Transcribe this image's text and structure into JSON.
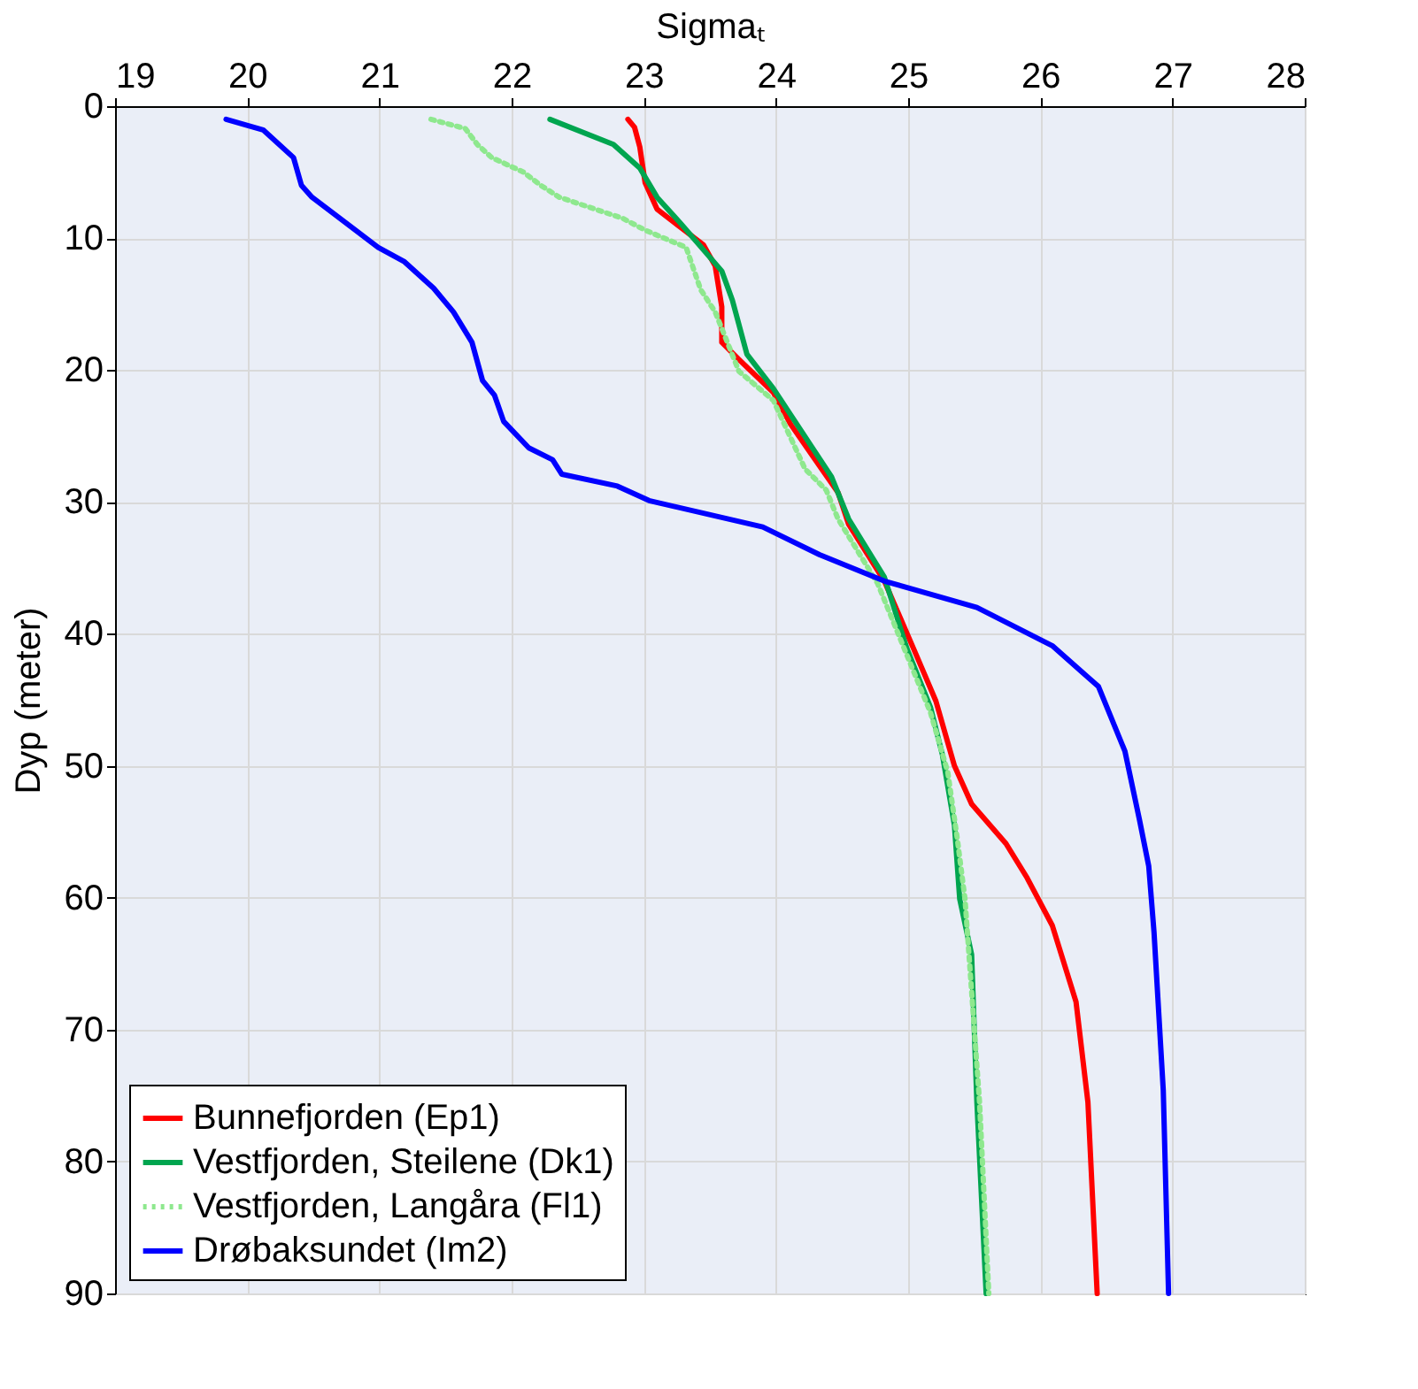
{
  "chart_data": {
    "type": "line",
    "xlabel": "Sigmaₜ",
    "ylabel": "Dyp (meter)",
    "xlim": [
      19,
      28
    ],
    "xticks": [
      19,
      20,
      21,
      22,
      23,
      24,
      25,
      26,
      27,
      28
    ],
    "ylim": [
      90,
      0
    ],
    "yticks": [
      0,
      10,
      20,
      30,
      40,
      50,
      60,
      70,
      80,
      90
    ],
    "grid": true,
    "legend": "bottom left",
    "marker": "none",
    "series": [
      {
        "name": "Bunnefjorden (Ep1)",
        "color": "#ff0000",
        "line_style": "solid",
        "x": [
          22.88,
          22.93,
          22.97,
          23.01,
          23.1,
          23.28,
          23.45,
          23.54,
          23.59,
          23.59,
          23.72,
          23.98,
          24.11,
          24.47,
          24.55,
          24.82,
          25.04,
          25.21,
          25.35,
          25.48,
          25.74,
          25.9,
          26.09,
          26.27,
          26.36,
          26.43
        ],
        "values": [
          1,
          1.6,
          3.1,
          5.8,
          7.8,
          9.2,
          10.5,
          12.1,
          15.2,
          17.9,
          19.2,
          21.7,
          24.1,
          29.3,
          31.7,
          36,
          41.1,
          45.1,
          50,
          52.9,
          55.9,
          58.5,
          62.1,
          67.9,
          75.5,
          90
        ]
      },
      {
        "name": "Vestfjorden, Steilene (Dk1)",
        "color": "#00a54f",
        "line_style": "solid",
        "x": [
          22.29,
          22.77,
          22.97,
          23.1,
          23.28,
          23.59,
          23.67,
          23.78,
          23.98,
          24.42,
          24.55,
          24.82,
          24.99,
          25.17,
          25.26,
          25.35,
          25.39,
          25.48,
          25.52,
          25.59
        ],
        "values": [
          1,
          2.9,
          4.7,
          6.9,
          8.9,
          12.5,
          14.7,
          18.8,
          21.4,
          28.1,
          31.3,
          35.7,
          41.1,
          45.6,
          49.2,
          54.5,
          60.1,
          64.3,
          75.5,
          90
        ]
      },
      {
        "name": "Vestfjorden, Langåra (Fl1)",
        "color": "#8ee88e",
        "line_style": "dotted",
        "x": [
          21.39,
          21.65,
          21.74,
          21.85,
          22.09,
          22.22,
          22.36,
          22.84,
          23.01,
          23.32,
          23.43,
          23.54,
          23.72,
          23.98,
          24.22,
          24.38,
          24.47,
          24.77,
          24.99,
          25.17,
          25.3,
          25.37,
          25.43,
          25.54,
          25.61
        ],
        "values": [
          1,
          1.7,
          2.9,
          3.9,
          5,
          6,
          6.9,
          8.5,
          9.4,
          10.7,
          13.9,
          15.6,
          20.1,
          22.3,
          27.5,
          29.1,
          31.3,
          36.2,
          41.6,
          46,
          50.5,
          55.4,
          60.1,
          75.5,
          90
        ]
      },
      {
        "name": "Drøbaksundet (Im2)",
        "color": "#0000ff",
        "line_style": "solid",
        "x": [
          19.84,
          20.12,
          20.35,
          20.41,
          20.49,
          20.99,
          21.19,
          21.41,
          21.56,
          21.7,
          21.78,
          21.87,
          21.94,
          22.13,
          22.31,
          22.38,
          22.8,
          23.04,
          23.9,
          24.33,
          24.82,
          25.52,
          26.09,
          26.44,
          26.64,
          26.75,
          26.82,
          26.86,
          26.93,
          26.97
        ],
        "values": [
          1,
          1.8,
          3.9,
          6,
          6.9,
          10.7,
          11.8,
          13.8,
          15.6,
          17.9,
          20.8,
          21.9,
          23.9,
          25.9,
          26.8,
          27.9,
          28.8,
          29.9,
          31.9,
          34,
          36,
          38,
          40.9,
          44,
          48.9,
          54.1,
          57.6,
          62.6,
          74.6,
          90
        ]
      }
    ]
  }
}
